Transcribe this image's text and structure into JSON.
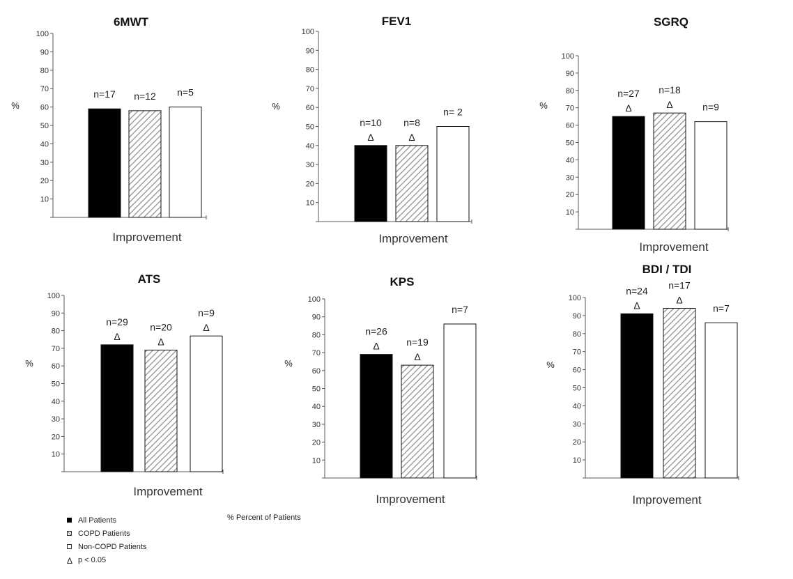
{
  "chart_data": [
    {
      "type": "bar",
      "title": "6MWT",
      "ylabel": "%",
      "xlabel": "Improvement",
      "ylim": [
        0,
        100
      ],
      "yticks": [
        "10",
        "20",
        "30",
        "40",
        "50",
        "60",
        "70",
        "80",
        "90",
        "100"
      ],
      "series": [
        {
          "name": "All Patients",
          "values": [
            59
          ],
          "n_label": "n=17",
          "sig": false
        },
        {
          "name": "COPD Patients",
          "values": [
            58
          ],
          "n_label": "n=12",
          "sig": false
        },
        {
          "name": "Non-COPD Patients",
          "values": [
            60
          ],
          "n_label": "n=5",
          "sig": false
        }
      ]
    },
    {
      "type": "bar",
      "title": "FEV1",
      "ylabel": "%",
      "xlabel": "Improvement",
      "ylim": [
        0,
        100
      ],
      "yticks": [
        "10",
        "20",
        "30",
        "40",
        "50",
        "60",
        "70",
        "80",
        "90",
        "100"
      ],
      "series": [
        {
          "name": "All Patients",
          "values": [
            40
          ],
          "n_label": "n=10",
          "sig": true
        },
        {
          "name": "COPD Patients",
          "values": [
            40
          ],
          "n_label": "n=8",
          "sig": true
        },
        {
          "name": "Non-COPD Patients",
          "values": [
            50
          ],
          "n_label": "n= 2",
          "sig": false
        }
      ]
    },
    {
      "type": "bar",
      "title": "SGRQ",
      "ylabel": "%",
      "xlabel": "Improvement",
      "ylim": [
        0,
        100
      ],
      "yticks": [
        "10",
        "20",
        "30",
        "40",
        "50",
        "60",
        "70",
        "80",
        "90",
        "100"
      ],
      "series": [
        {
          "name": "All Patients",
          "values": [
            65
          ],
          "n_label": "n=27",
          "sig": true
        },
        {
          "name": "COPD Patients",
          "values": [
            67
          ],
          "n_label": "n=18",
          "sig": true
        },
        {
          "name": "Non-COPD Patients",
          "values": [
            62
          ],
          "n_label": "n=9",
          "sig": false
        }
      ]
    },
    {
      "type": "bar",
      "title": "ATS",
      "ylabel": "%",
      "xlabel": "Improvement",
      "ylim": [
        0,
        100
      ],
      "yticks": [
        "10",
        "20",
        "30",
        "40",
        "50",
        "60",
        "70",
        "80",
        "90",
        "100"
      ],
      "series": [
        {
          "name": "All Patients",
          "values": [
            72
          ],
          "n_label": "n=29",
          "sig": true
        },
        {
          "name": "COPD Patients",
          "values": [
            69
          ],
          "n_label": "n=20",
          "sig": true
        },
        {
          "name": "Non-COPD Patients",
          "values": [
            77
          ],
          "n_label": "n=9",
          "sig": true
        }
      ]
    },
    {
      "type": "bar",
      "title": "KPS",
      "ylabel": "%",
      "xlabel": "Improvement",
      "ylim": [
        0,
        100
      ],
      "yticks": [
        "10",
        "20",
        "30",
        "40",
        "50",
        "60",
        "70",
        "80",
        "90",
        "100"
      ],
      "series": [
        {
          "name": "All Patients",
          "values": [
            69
          ],
          "n_label": "n=26",
          "sig": true
        },
        {
          "name": "COPD Patients",
          "values": [
            63
          ],
          "n_label": "n=19",
          "sig": true
        },
        {
          "name": "Non-COPD Patients",
          "values": [
            86
          ],
          "n_label": "n=7",
          "sig": false
        }
      ]
    },
    {
      "type": "bar",
      "title": "BDI / TDI",
      "ylabel": "%",
      "xlabel": "Improvement",
      "ylim": [
        0,
        100
      ],
      "yticks": [
        "10",
        "20",
        "30",
        "40",
        "50",
        "60",
        "70",
        "80",
        "90",
        "100"
      ],
      "series": [
        {
          "name": "All Patients",
          "values": [
            91
          ],
          "n_label": "n=24",
          "sig": true
        },
        {
          "name": "COPD Patients",
          "values": [
            94
          ],
          "n_label": "n=17",
          "sig": true
        },
        {
          "name": "Non-COPD Patients",
          "values": [
            86
          ],
          "n_label": "n=7",
          "sig": false
        }
      ]
    }
  ],
  "legend": {
    "items": [
      {
        "label": "All Patients",
        "style": "black"
      },
      {
        "label": "COPD Patients",
        "style": "hatch"
      },
      {
        "label": "Non-COPD Patients",
        "style": "white"
      }
    ],
    "sig_symbol": "Δ",
    "sig_label": "p < 0.05",
    "percent_note": "% Percent of Patients"
  },
  "colors": {
    "all_patients": "#000000",
    "copd_hatch": "#888888",
    "non_copd": "#ffffff",
    "axis": "#555555"
  }
}
